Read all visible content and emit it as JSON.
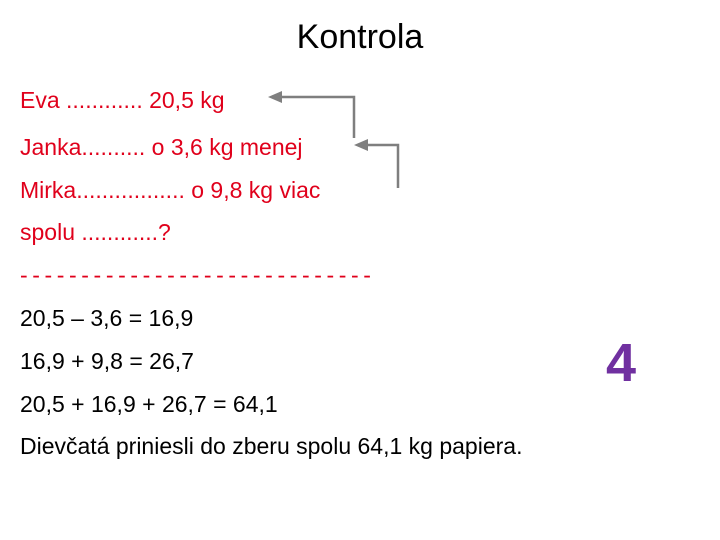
{
  "title": "Kontrola",
  "problem": {
    "lines": [
      "Eva ............ 20,5 kg",
      "Janka.......... o 3,6 kg menej",
      "Mirka................. o 9,8 kg viac",
      "spolu ............?"
    ]
  },
  "separator": "-----------------------------",
  "solution": {
    "lines": [
      "20,5 – 3,6 = 16,9",
      "16,9 + 9,8 = 26,7",
      "20,5 + 16,9 + 26,7 = 64,1",
      "Dievčatá priniesli do zberu spolu 64,1 kg papiera."
    ]
  },
  "slide_number": "4",
  "colors": {
    "problem_text": "#e0001b",
    "solution_text": "#000000",
    "arrow": "#7f7f7f",
    "slide_number": "#7030a0"
  }
}
